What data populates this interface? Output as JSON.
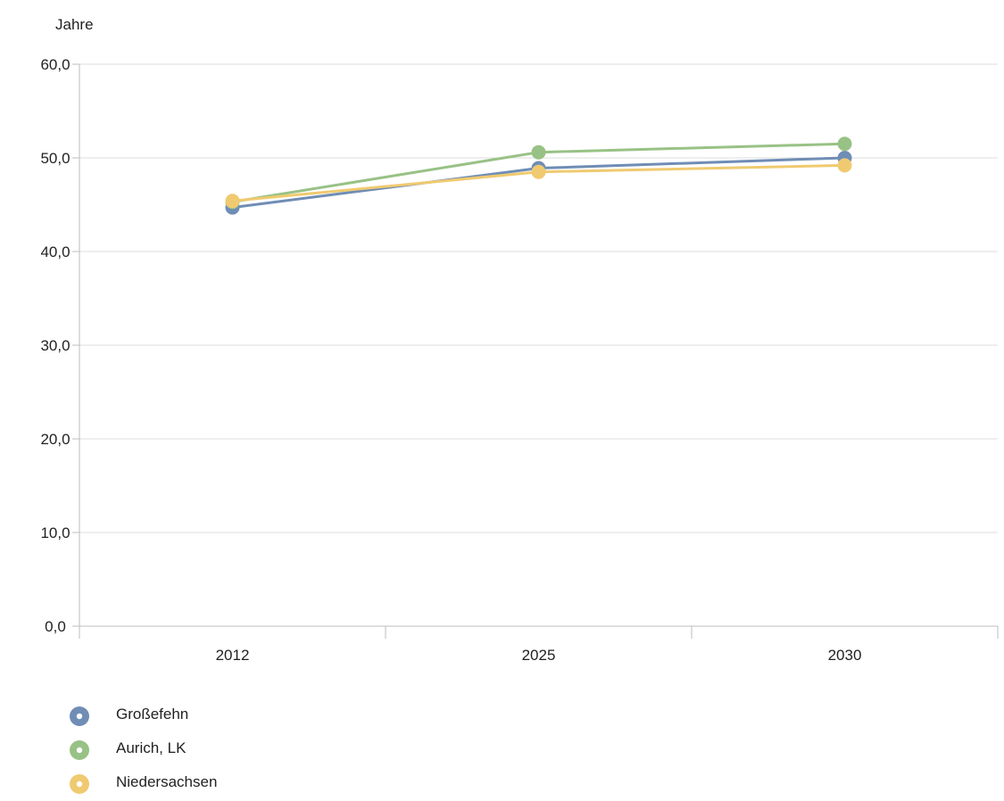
{
  "chart_data": {
    "type": "line",
    "title": "",
    "xlabel": "",
    "ylabel": "Jahre",
    "categories": [
      "2012",
      "2025",
      "2030"
    ],
    "ylim": [
      0,
      60
    ],
    "y_ticks": [
      "0,0",
      "10,0",
      "20,0",
      "30,0",
      "40,0",
      "50,0",
      "60,0"
    ],
    "y_tick_values": [
      0,
      10,
      20,
      30,
      40,
      50,
      60
    ],
    "grid": true,
    "legend_position": "bottom-left",
    "series": [
      {
        "name": "Großefehn",
        "color": "#6f8db5",
        "values": [
          44.7,
          48.9,
          50.0
        ]
      },
      {
        "name": "Aurich, LK",
        "color": "#98c285",
        "values": [
          45.3,
          50.6,
          51.5
        ]
      },
      {
        "name": "Niedersachsen",
        "color": "#f0ca70",
        "values": [
          45.4,
          48.5,
          49.2
        ]
      }
    ]
  }
}
